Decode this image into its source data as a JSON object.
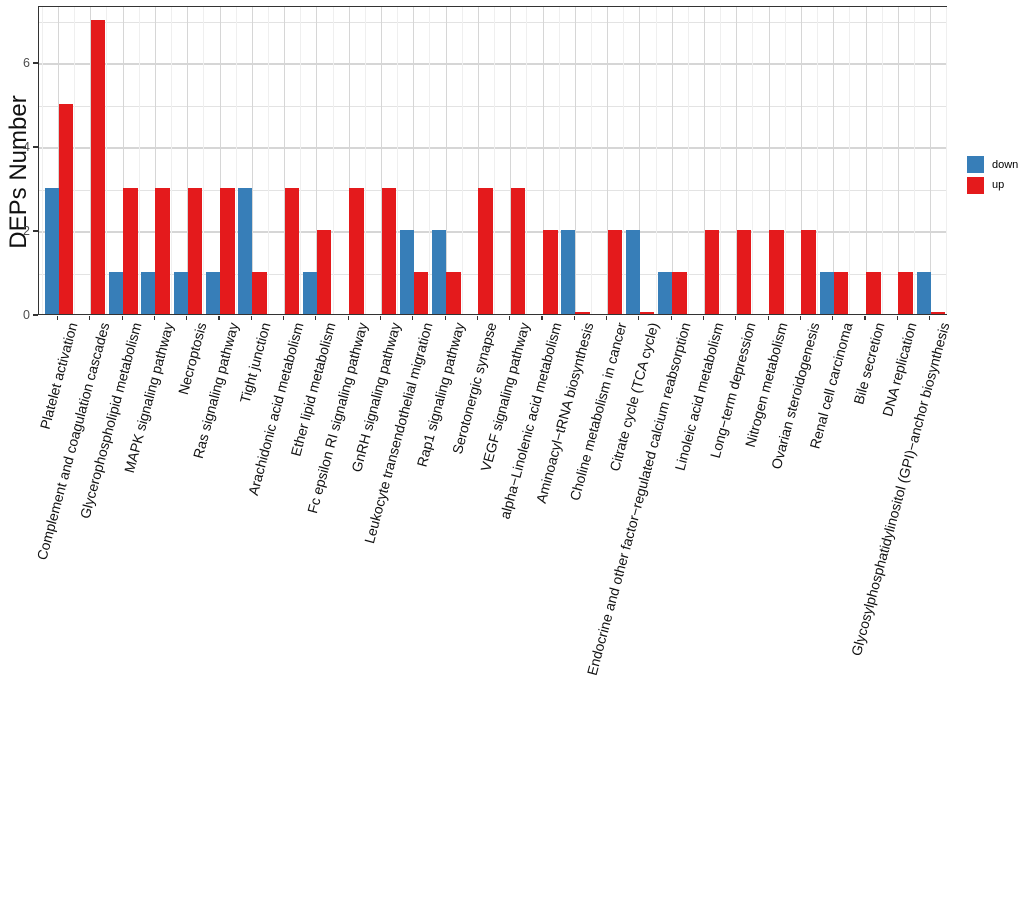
{
  "chart_data": {
    "type": "bar",
    "title": "",
    "xlabel": "",
    "ylabel": "DEPs Number",
    "ylim": [
      0,
      7.35
    ],
    "yticks": [
      0,
      2,
      4,
      6
    ],
    "grid": {
      "h_major": [
        2,
        4,
        6
      ],
      "h_minor": [
        1,
        3,
        5,
        7
      ],
      "v_lines": "category-centers",
      "grid_on": true
    },
    "x_tick_label_angle": 75,
    "legend": {
      "position": "right"
    },
    "categories": [
      "Platelet activation",
      "Complement and coagulation cascades",
      "Glycerophospholipid metabolism",
      "MAPK signaling pathway",
      "Necroptosis",
      "Ras signaling pathway",
      "Tight junction",
      "Arachidonic acid metabolism",
      "Ether lipid metabolism",
      "Fc epsilon RI signaling pathway",
      "GnRH signaling pathway",
      "Leukocyte transendothelial migration",
      "Rap1 signaling pathway",
      "Serotonergic synapse",
      "VEGF signaling pathway",
      "alpha−Linolenic acid metabolism",
      "Aminoacyl−tRNA biosynthesis",
      "Choline metabolism in cancer",
      "Citrate cycle (TCA cycle)",
      "Endocrine and other factor−regulated calcium reabsorption",
      "Linoleic acid metabolism",
      "Long−term depression",
      "Nitrogen metabolism",
      "Ovarian steroidogenesis",
      "Renal cell carcinoma",
      "Bile secretion",
      "DNA replication",
      "Glycosylphosphatidylinositol (GPI)−anchor biosynthesis"
    ],
    "series": [
      {
        "name": "down",
        "color": "#377EB8",
        "values": [
          3,
          null,
          1,
          1,
          1,
          1,
          3,
          null,
          1,
          null,
          null,
          2,
          2,
          null,
          null,
          null,
          2,
          null,
          2,
          1,
          null,
          null,
          null,
          null,
          1,
          null,
          null,
          1
        ]
      },
      {
        "name": "up",
        "color": "#E41A1C",
        "values": [
          5,
          7,
          3,
          3,
          3,
          3,
          1,
          3,
          2,
          3,
          3,
          1,
          1,
          3,
          3,
          2,
          0,
          2,
          0,
          1,
          2,
          2,
          2,
          2,
          1,
          1,
          1,
          0
        ]
      }
    ]
  },
  "colors": {
    "panel_border": "#333333",
    "grid_major": "#d6d6d6",
    "grid_minor": "#e3e3e3",
    "grid_boundary": "#efefef",
    "axis_text": "#4d4d4d",
    "x_label_text": "#111111"
  }
}
